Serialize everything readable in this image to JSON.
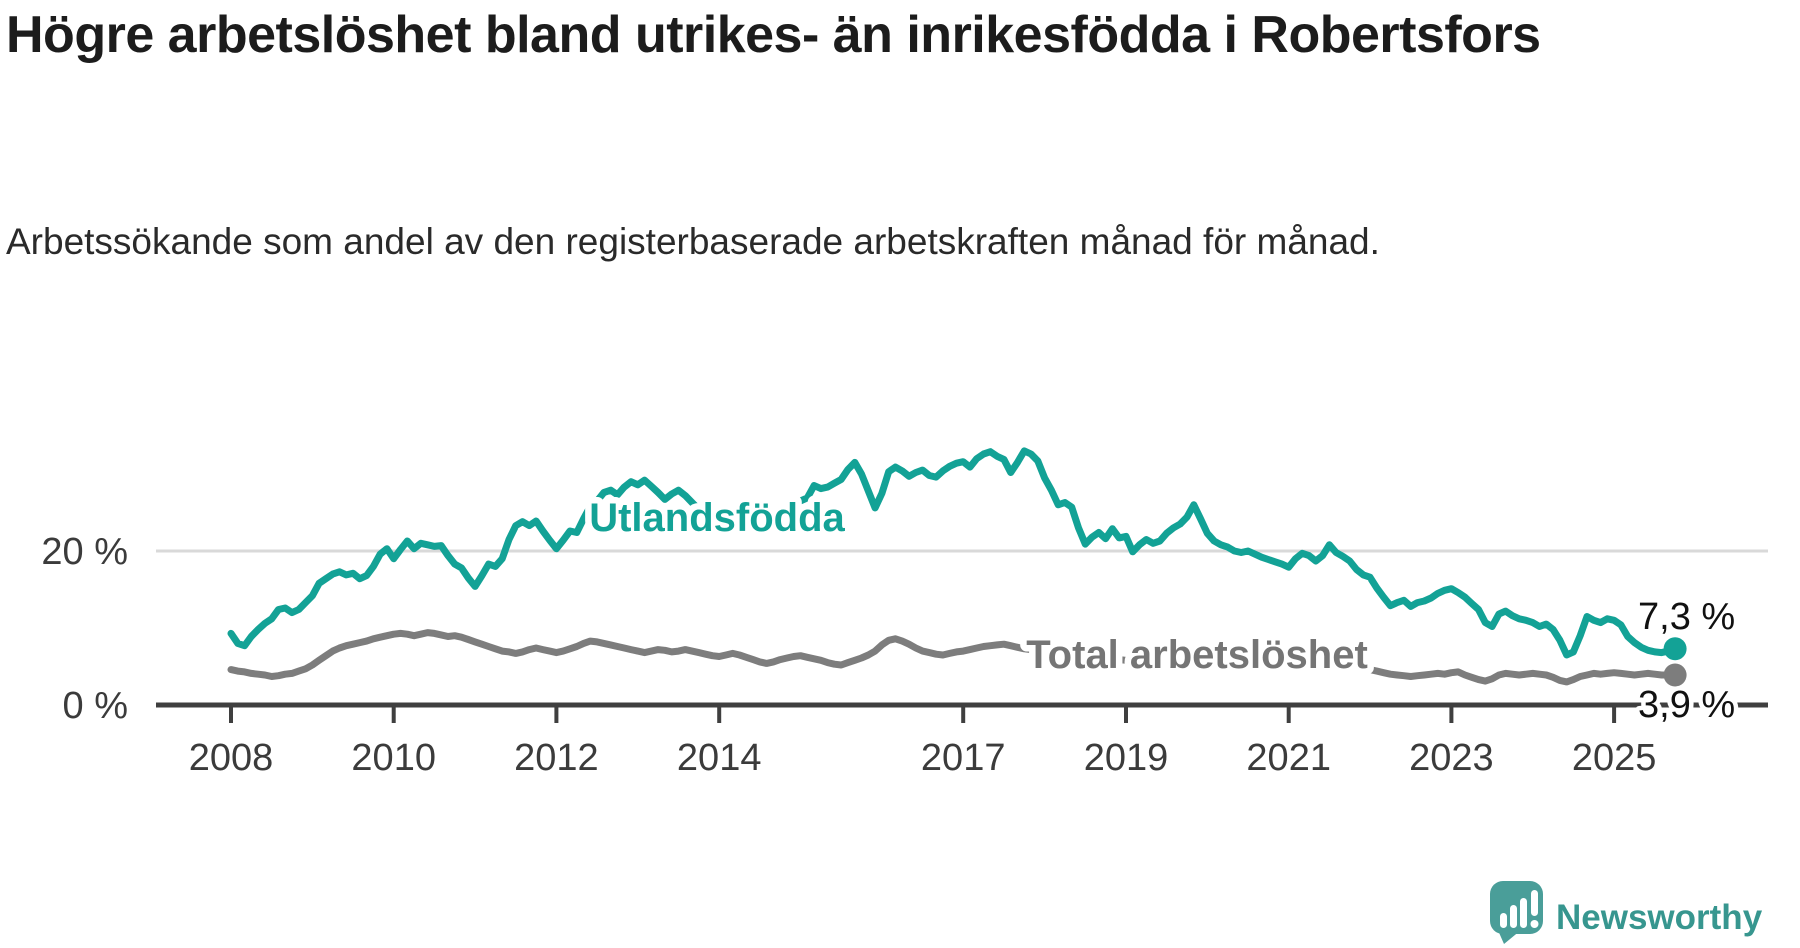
{
  "title": "Högre arbetslöshet bland utrikes- än inrikesfödda i Robertsfors",
  "subtitle": "Arbetssökande som andel av den registerbaserade arbetskraften månad för månad.",
  "chart_data": {
    "type": "line",
    "title": "Högre arbetslöshet bland utrikes- än inrikesfödda i Robertsfors",
    "x_unit": "month",
    "x_start": {
      "year": 2008,
      "month": 1
    },
    "x_end": {
      "year": 2025,
      "month": 10
    },
    "x_tick_years": [
      2008,
      2010,
      2012,
      2014,
      2017,
      2019,
      2021,
      2023,
      2025
    ],
    "ylim": [
      0,
      34
    ],
    "y_unit": "%",
    "y_ticks": [
      {
        "value": 0,
        "label": "0 %"
      },
      {
        "value": 20,
        "label": "20 %"
      }
    ],
    "grid": "single horizontal gridline at 20 %",
    "legend_position": "inline labels on lines",
    "series": [
      {
        "name": "Utlandsfödda",
        "color": "#13a296",
        "end_value": 7.3,
        "end_label": "7,3 %",
        "values": [
          9.3,
          8.0,
          7.7,
          8.9,
          9.8,
          10.6,
          11.2,
          12.4,
          12.6,
          12.0,
          12.4,
          13.3,
          14.2,
          15.8,
          16.4,
          17.0,
          17.3,
          16.9,
          17.1,
          16.4,
          16.8,
          18.0,
          19.6,
          20.3,
          19.0,
          20.2,
          21.3,
          20.3,
          21.0,
          20.8,
          20.6,
          20.7,
          19.4,
          18.3,
          17.8,
          16.5,
          15.4,
          16.8,
          18.3,
          18.0,
          19.0,
          21.5,
          23.3,
          23.8,
          23.3,
          23.9,
          22.6,
          21.4,
          20.3,
          21.4,
          22.6,
          22.4,
          24.2,
          25.8,
          26.5,
          27.6,
          27.9,
          27.3,
          28.3,
          29.0,
          28.6,
          29.2,
          28.4,
          27.6,
          26.7,
          27.4,
          27.9,
          27.2,
          26.3,
          25.4,
          24.6,
          23.7,
          22.8,
          22.3,
          22.6,
          23.1,
          23.6,
          24.0,
          24.4,
          24.8,
          25.1,
          25.5,
          25.8,
          26.1,
          26.5,
          26.9,
          28.5,
          28.1,
          28.3,
          28.8,
          29.3,
          30.6,
          31.5,
          30.0,
          27.8,
          25.6,
          27.5,
          30.3,
          30.9,
          30.4,
          29.7,
          30.2,
          30.5,
          29.8,
          29.6,
          30.4,
          31.0,
          31.4,
          31.6,
          30.9,
          32.0,
          32.6,
          32.9,
          32.3,
          31.9,
          30.2,
          31.5,
          33.0,
          32.6,
          31.7,
          29.5,
          27.9,
          26.0,
          26.3,
          25.7,
          23.0,
          20.9,
          21.8,
          22.4,
          21.6,
          22.9,
          21.7,
          21.9,
          19.9,
          20.8,
          21.5,
          21.0,
          21.3,
          22.3,
          23.0,
          23.5,
          24.4,
          26.0,
          24.2,
          22.3,
          21.3,
          20.8,
          20.5,
          20.0,
          19.8,
          20.0,
          19.6,
          19.2,
          18.9,
          18.6,
          18.3,
          17.9,
          19.0,
          19.7,
          19.4,
          18.7,
          19.4,
          20.8,
          19.8,
          19.3,
          18.7,
          17.6,
          16.9,
          16.6,
          15.2,
          14.0,
          12.9,
          13.3,
          13.6,
          12.8,
          13.3,
          13.5,
          13.9,
          14.5,
          14.9,
          15.1,
          14.6,
          14.0,
          13.2,
          12.4,
          10.7,
          10.2,
          11.8,
          12.2,
          11.6,
          11.2,
          11.0,
          10.7,
          10.2,
          10.5,
          9.8,
          8.4,
          6.5,
          6.9,
          9.0,
          11.5,
          11.0,
          10.7,
          11.2,
          11.0,
          10.4,
          8.9,
          8.1,
          7.5,
          7.1,
          6.9,
          6.8,
          7.0,
          7.3
        ]
      },
      {
        "name": "Total arbetslöshet",
        "color": "#7d7d7d",
        "end_value": 3.9,
        "end_label": "3,9 %",
        "values": [
          4.6,
          4.4,
          4.3,
          4.1,
          4.0,
          3.9,
          3.7,
          3.8,
          4.0,
          4.1,
          4.4,
          4.7,
          5.2,
          5.8,
          6.4,
          7.0,
          7.4,
          7.7,
          7.9,
          8.1,
          8.3,
          8.6,
          8.8,
          9.0,
          9.2,
          9.3,
          9.2,
          9.0,
          9.2,
          9.4,
          9.3,
          9.1,
          8.9,
          9.0,
          8.8,
          8.5,
          8.2,
          7.9,
          7.6,
          7.3,
          7.0,
          6.9,
          6.7,
          6.9,
          7.2,
          7.4,
          7.2,
          7.0,
          6.8,
          7.0,
          7.3,
          7.6,
          8.0,
          8.3,
          8.2,
          8.0,
          7.8,
          7.6,
          7.4,
          7.2,
          7.0,
          6.8,
          7.0,
          7.2,
          7.1,
          6.9,
          7.0,
          7.2,
          7.0,
          6.8,
          6.6,
          6.4,
          6.3,
          6.5,
          6.7,
          6.5,
          6.2,
          5.9,
          5.6,
          5.4,
          5.6,
          5.9,
          6.1,
          6.3,
          6.4,
          6.2,
          6.0,
          5.8,
          5.5,
          5.3,
          5.2,
          5.5,
          5.8,
          6.1,
          6.5,
          7.0,
          7.8,
          8.4,
          8.6,
          8.3,
          7.9,
          7.4,
          7.0,
          6.8,
          6.6,
          6.5,
          6.7,
          6.9,
          7.0,
          7.2,
          7.4,
          7.6,
          7.7,
          7.8,
          7.9,
          7.7,
          7.5,
          7.3,
          7.2,
          7.0,
          6.8,
          6.6,
          6.4,
          6.3,
          6.2,
          6.0,
          5.9,
          6.0,
          6.2,
          6.1,
          6.0,
          5.9,
          5.8,
          5.7,
          5.9,
          6.0,
          5.9,
          6.0,
          6.1,
          6.2,
          6.1,
          6.2,
          6.3,
          6.2,
          6.1,
          6.2,
          6.4,
          6.6,
          6.7,
          6.6,
          6.5,
          6.4,
          6.3,
          6.2,
          6.1,
          6.0,
          5.9,
          5.8,
          5.9,
          6.0,
          5.9,
          5.8,
          5.7,
          5.6,
          5.4,
          5.2,
          5.0,
          4.8,
          4.6,
          4.4,
          4.2,
          4.0,
          3.9,
          3.8,
          3.7,
          3.8,
          3.9,
          4.0,
          4.1,
          4.0,
          4.2,
          4.3,
          3.9,
          3.6,
          3.3,
          3.1,
          3.4,
          3.9,
          4.1,
          4.0,
          3.9,
          4.0,
          4.1,
          4.0,
          3.9,
          3.6,
          3.2,
          3.0,
          3.3,
          3.7,
          3.9,
          4.1,
          4.0,
          4.1,
          4.2,
          4.1,
          4.0,
          3.9,
          4.0,
          4.1,
          4.0,
          3.9,
          3.9,
          3.9
        ]
      }
    ],
    "axis_color": "#3f3f3f",
    "gridline_color": "#d9d9d9"
  },
  "branding": {
    "logo_text": "Newsworthy",
    "icon": "newsworthy-speech-bubble-bar-chart-icon",
    "icon_color": "#4a9e99",
    "text_color": "#37968f"
  }
}
